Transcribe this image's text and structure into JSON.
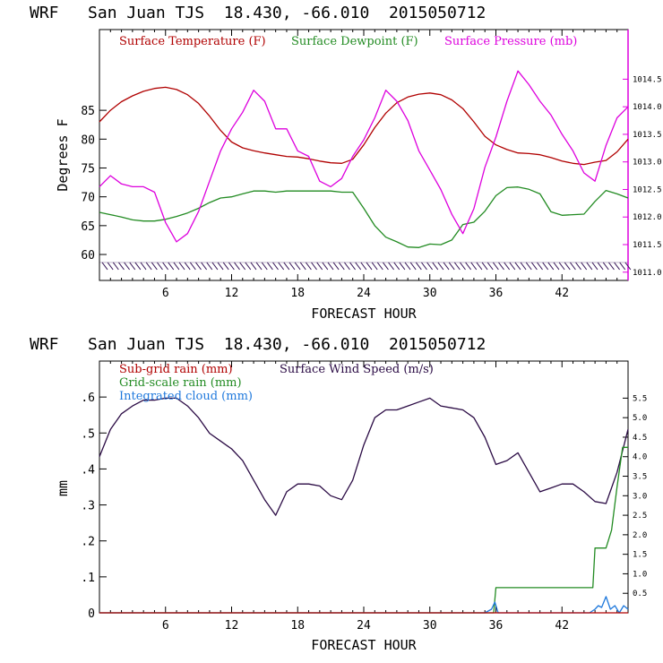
{
  "colors": {
    "temperature": "#b00000",
    "dewpoint": "#228b22",
    "pressure": "#dd00dd",
    "subgrid": "#b00000",
    "gridscale": "#228b22",
    "cloud": "#1e78dc",
    "wind": "#2a0a44",
    "axis": "#000000",
    "right_axis_top": "#dd00dd"
  },
  "chart_data": [
    {
      "type": "line",
      "title": "WRF   San Juan TJS  18.430, -66.010  2015050712",
      "xlabel": "FORECAST HOUR",
      "ylabel": "Degrees F",
      "xlim": [
        0,
        48
      ],
      "ylim": [
        55.5,
        99
      ],
      "xticks": [
        6,
        12,
        18,
        24,
        30,
        36,
        42
      ],
      "yticks": [
        60,
        65,
        70,
        75,
        80,
        85
      ],
      "y2label": "",
      "y2lim": [
        1010.85,
        1015.4
      ],
      "y2ticks": [
        "1011.0",
        "1011.5",
        "1012.0",
        "1012.5",
        "1013.0",
        "1013.5",
        "1014.0",
        "1014.5"
      ],
      "legend": [
        "Surface Temperature (F)",
        "Surface Dewpoint (F)",
        "Surface Pressure (mb)"
      ],
      "legend_position": "top",
      "wind_barbs_at_y": 58,
      "series": [
        {
          "name": "Surface Temperature (F)",
          "axis": "left",
          "x": [
            0,
            1,
            2,
            3,
            4,
            5,
            6,
            7,
            8,
            9,
            10,
            11,
            12,
            13,
            14,
            15,
            16,
            17,
            18,
            19,
            20,
            21,
            22,
            23,
            24,
            25,
            26,
            27,
            28,
            29,
            30,
            31,
            32,
            33,
            34,
            35,
            36,
            37,
            38,
            39,
            40,
            41,
            42,
            43,
            44,
            45,
            46,
            47,
            48
          ],
          "y": [
            83,
            85,
            86.5,
            87.5,
            88.3,
            88.8,
            89,
            88.6,
            87.7,
            86.2,
            84,
            81.5,
            79.5,
            78.5,
            78,
            77.6,
            77.3,
            77,
            76.9,
            76.6,
            76.2,
            75.9,
            75.8,
            76.5,
            79,
            82,
            84.5,
            86.3,
            87.3,
            87.8,
            88,
            87.7,
            86.8,
            85.3,
            83,
            80.5,
            79,
            78.2,
            77.6,
            77.5,
            77.3,
            76.8,
            76.2,
            75.8,
            75.6,
            76,
            76.3,
            77.8,
            80
          ]
        },
        {
          "name": "Surface Dewpoint (F)",
          "axis": "left",
          "x": [
            0,
            1,
            2,
            3,
            4,
            5,
            6,
            7,
            8,
            9,
            10,
            11,
            12,
            13,
            14,
            15,
            16,
            17,
            18,
            19,
            20,
            21,
            22,
            23,
            24,
            25,
            26,
            27,
            28,
            29,
            30,
            31,
            32,
            33,
            34,
            35,
            36,
            37,
            38,
            39,
            40,
            41,
            42,
            43,
            44,
            45,
            46,
            47,
            48
          ],
          "y": [
            67.3,
            66.9,
            66.5,
            66,
            65.8,
            65.8,
            66.1,
            66.6,
            67.2,
            68,
            69,
            69.8,
            70,
            70.5,
            71,
            71,
            70.8,
            71,
            71,
            71,
            71,
            71,
            70.8,
            70.8,
            68,
            65,
            63,
            62.2,
            61.3,
            61.2,
            61.8,
            61.7,
            62.5,
            65.2,
            65.6,
            67.5,
            70.2,
            71.6,
            71.7,
            71.3,
            70.5,
            67.4,
            66.8,
            66.9,
            67,
            69.2,
            71.1,
            70.5,
            69.8
          ]
        },
        {
          "name": "Surface Pressure (mb)",
          "axis": "right",
          "x": [
            0,
            1,
            2,
            3,
            4,
            5,
            6,
            7,
            8,
            9,
            10,
            11,
            12,
            13,
            14,
            15,
            16,
            17,
            18,
            19,
            20,
            21,
            22,
            23,
            24,
            25,
            26,
            27,
            28,
            29,
            30,
            31,
            32,
            33,
            34,
            35,
            36,
            37,
            38,
            39,
            40,
            41,
            42,
            43,
            44,
            45,
            46,
            47,
            48
          ],
          "y": [
            1012.55,
            1012.75,
            1012.6,
            1012.55,
            1012.55,
            1012.45,
            1011.9,
            1011.55,
            1011.7,
            1012.1,
            1012.65,
            1013.2,
            1013.6,
            1013.9,
            1014.3,
            1014.1,
            1013.6,
            1013.6,
            1013.2,
            1013.1,
            1012.65,
            1012.55,
            1012.7,
            1013.1,
            1013.4,
            1013.8,
            1014.3,
            1014.1,
            1013.75,
            1013.2,
            1012.85,
            1012.5,
            1012.05,
            1011.7,
            1012.15,
            1012.9,
            1013.45,
            1014.1,
            1014.65,
            1014.4,
            1014.1,
            1013.85,
            1013.5,
            1013.2,
            1012.8,
            1012.65,
            1013.3,
            1013.8,
            1014.0
          ]
        }
      ]
    },
    {
      "type": "line",
      "title": "WRF   San Juan TJS  18.430, -66.010  2015050712",
      "xlabel": "FORECAST HOUR",
      "ylabel": "mm",
      "xlim": [
        0,
        48
      ],
      "ylim": [
        0,
        0.7
      ],
      "xticks": [
        6,
        12,
        18,
        24,
        30,
        36,
        42
      ],
      "yticks": [
        0,
        0.1,
        0.2,
        0.3,
        0.4,
        0.5,
        0.6
      ],
      "ytick_labels": [
        "0",
        ".1",
        ".2",
        ".3",
        ".4",
        ".5",
        ".6"
      ],
      "y2lim": [
        0,
        6.45
      ],
      "y2ticks": [
        "0.5",
        "1.0",
        "1.5",
        "2.0",
        "2.5",
        "3.0",
        "3.5",
        "4.0",
        "4.5",
        "5.0",
        "5.5"
      ],
      "legend": [
        "Sub-grid rain (mm)",
        "Surface Wind Speed (m/s)",
        "Grid-scale rain (mm)",
        "Integrated cloud (mm)"
      ],
      "legend_position": "top-left",
      "series": [
        {
          "name": "Surface Wind Speed (m/s)",
          "axis": "right",
          "x": [
            0,
            1,
            2,
            3,
            4,
            5,
            6,
            7,
            8,
            9,
            10,
            11,
            12,
            13,
            14,
            15,
            16,
            17,
            18,
            19,
            20,
            21,
            22,
            23,
            24,
            25,
            26,
            27,
            28,
            29,
            30,
            31,
            32,
            33,
            34,
            35,
            36,
            37,
            38,
            39,
            40,
            41,
            42,
            43,
            44,
            45,
            46,
            47,
            48
          ],
          "y": [
            4.0,
            4.7,
            5.1,
            5.3,
            5.45,
            5.45,
            5.5,
            5.5,
            5.3,
            5.0,
            4.6,
            4.4,
            4.2,
            3.9,
            3.4,
            2.9,
            2.5,
            3.1,
            3.3,
            3.3,
            3.25,
            3.0,
            2.9,
            3.4,
            4.3,
            5.0,
            5.2,
            5.2,
            5.3,
            5.4,
            5.5,
            5.3,
            5.25,
            5.2,
            5.0,
            4.5,
            3.8,
            3.9,
            4.1,
            3.6,
            3.1,
            3.2,
            3.3,
            3.3,
            3.1,
            2.85,
            2.8,
            3.6,
            4.7
          ]
        },
        {
          "name": "Grid-scale rain (mm)",
          "axis": "left",
          "x": [
            0,
            35.8,
            36,
            37,
            38,
            39,
            40,
            41,
            42,
            43,
            44,
            44.8,
            45,
            46,
            46.5,
            47,
            47.5,
            48
          ],
          "y": [
            0,
            0,
            0.07,
            0.07,
            0.07,
            0.07,
            0.07,
            0.07,
            0.07,
            0.07,
            0.07,
            0.07,
            0.18,
            0.18,
            0.23,
            0.35,
            0.46,
            0.46
          ]
        },
        {
          "name": "Integrated cloud (mm)",
          "axis": "left",
          "x": [
            0,
            35,
            35.6,
            35.9,
            36.2,
            44.5,
            45,
            45.3,
            45.6,
            46,
            46.4,
            46.8,
            47.2,
            47.6,
            48
          ],
          "y": [
            0,
            0,
            0.01,
            0.03,
            0,
            0,
            0.01,
            0.02,
            0.015,
            0.045,
            0.01,
            0.02,
            0,
            0.02,
            0.01
          ]
        },
        {
          "name": "Sub-grid rain (mm)",
          "axis": "left",
          "x": [
            0,
            48
          ],
          "y": [
            0,
            0
          ]
        }
      ]
    }
  ]
}
